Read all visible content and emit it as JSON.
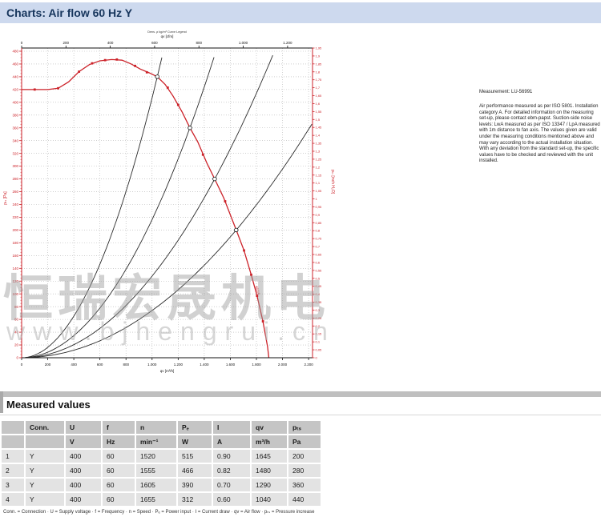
{
  "header": {
    "title": "Charts: Air flow 60 Hz Y"
  },
  "chart_data": {
    "type": "line",
    "title": "Air flow 60 Hz Y",
    "top_note": "Dens. ρ kg/m³ Curve Legend",
    "grid": true,
    "axes": {
      "top": {
        "label": "qv [cfm]",
        "tick_values": [
          0,
          200,
          400,
          600,
          800,
          1000,
          1200
        ],
        "tick_labels": [
          "0",
          "200",
          "400",
          "600",
          "800",
          "1.000",
          "1.200"
        ]
      },
      "bottom": {
        "label": "qv [m³/h]",
        "max": 2230,
        "tick_values": [
          0,
          200,
          400,
          600,
          800,
          1000,
          1200,
          1400,
          1600,
          1800,
          2000,
          2200
        ],
        "tick_labels": [
          "0",
          "200",
          "400",
          "600",
          "800",
          "1.000",
          "1.200",
          "1.400",
          "1.600",
          "1.800",
          "2.000",
          "2.200"
        ]
      },
      "left": {
        "label": "pₜₛ [Pa]",
        "min": 0,
        "max": 485,
        "step": 20,
        "minor_step": 5
      },
      "right": {
        "label": "pₜₛ [inch H₂O]",
        "min": 0,
        "max": 1.95,
        "step": 0.05
      }
    },
    "fan_curve": {
      "name": "air-flow curve 60 Hz Y",
      "color": "#cc2229",
      "label": "450/4",
      "points": [
        [
          0,
          420
        ],
        [
          100,
          420
        ],
        [
          200,
          420
        ],
        [
          280,
          422
        ],
        [
          360,
          432
        ],
        [
          440,
          448
        ],
        [
          520,
          459
        ],
        [
          600,
          465
        ],
        [
          690,
          467
        ],
        [
          770,
          466
        ],
        [
          840,
          460
        ],
        [
          910,
          452
        ],
        [
          980,
          446
        ],
        [
          1040,
          440
        ],
        [
          1100,
          428
        ],
        [
          1160,
          410
        ],
        [
          1230,
          385
        ],
        [
          1290,
          360
        ],
        [
          1350,
          338
        ],
        [
          1420,
          305
        ],
        [
          1480,
          280
        ],
        [
          1550,
          250
        ],
        [
          1645,
          200
        ],
        [
          1705,
          168
        ],
        [
          1760,
          130
        ],
        [
          1805,
          97
        ],
        [
          1850,
          57
        ],
        [
          1885,
          18
        ],
        [
          1895,
          0
        ]
      ],
      "marker_points": [
        [
          100,
          420
        ],
        [
          280,
          422
        ],
        [
          440,
          448
        ],
        [
          540,
          461
        ],
        [
          640,
          466
        ],
        [
          730,
          467
        ],
        [
          870,
          457
        ],
        [
          960,
          447
        ],
        [
          1120,
          423
        ],
        [
          1200,
          396
        ],
        [
          1390,
          318
        ],
        [
          1560,
          245
        ],
        [
          1705,
          168
        ],
        [
          1760,
          130
        ],
        [
          1805,
          97
        ],
        [
          1850,
          57
        ]
      ]
    },
    "system_curves": {
      "color": "#2b2b2b",
      "k_values": [
        0.0004068,
        0.0002163,
        0.0001278,
        7.39e-05
      ]
    },
    "operating_points": [
      [
        1040,
        440
      ],
      [
        1290,
        360
      ],
      [
        1480,
        280
      ],
      [
        1645,
        200
      ]
    ]
  },
  "watermark": {
    "line1": "恒瑞宏晟机电",
    "line2": "www.bjhengrui.cn"
  },
  "notes": {
    "measurement": "Measurement: LU-56991",
    "paragraph": "Air performance measured as per ISO 5801. Installation category A. For detailed information on the measuring set-up, please contact ebm-papst. Suction-side noise levels: LwA measured as per ISO 13347 / LpA measured with 1m distance to fan axis. The values given are valid under the measuring conditions mentioned above and may vary according to the actual installation situation. With any deviation from the standard set-up, the specific values have to be checked and reviewed with the unit installed."
  },
  "measured": {
    "title": "Measured values",
    "columns": [
      "",
      "Conn.",
      "U",
      "f",
      "n",
      "Pₑ",
      "I",
      "qv",
      "pₜₛ"
    ],
    "units": [
      "",
      "",
      "V",
      "Hz",
      "min⁻¹",
      "W",
      "A",
      "m³/h",
      "Pa"
    ],
    "rows": [
      [
        "1",
        "Y",
        "400",
        "60",
        "1520",
        "515",
        "0.90",
        "1645",
        "200"
      ],
      [
        "2",
        "Y",
        "400",
        "60",
        "1555",
        "466",
        "0.82",
        "1480",
        "280"
      ],
      [
        "3",
        "Y",
        "400",
        "60",
        "1605",
        "390",
        "0.70",
        "1290",
        "360"
      ],
      [
        "4",
        "Y",
        "400",
        "60",
        "1655",
        "312",
        "0.60",
        "1040",
        "440"
      ]
    ],
    "legend": "Conn. = Connection · U = Supply voltage · f = Frequency · n = Speed · Pₑ = Power input · I = Current draw · qv = Air flow · pₜₛ = Pressure increase"
  },
  "colors": {
    "accent_red": "#cc2229",
    "curve_black": "#2b2b2b",
    "grid_gray": "#b0b0b0",
    "header_bg": "#cdd9ee",
    "header_text": "#16355c",
    "table_header_bg": "#c5c5c5",
    "table_row_bg": "#e3e3e3"
  }
}
